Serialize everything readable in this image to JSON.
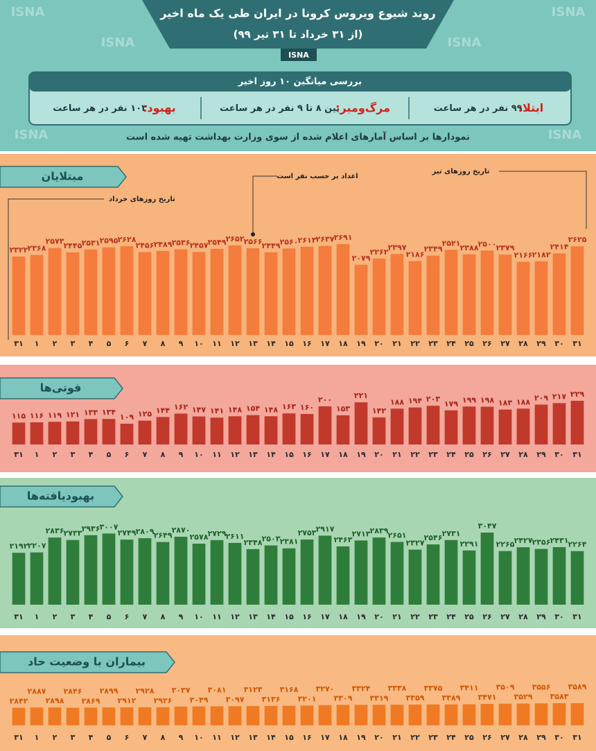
{
  "header": {
    "title": "روند شیوع ویروس کرونا در ایران طی یک ماه اخیر",
    "subtitle": "(از ۳۱ خرداد تا ۳۱ تیر ۹۹)",
    "brand": "ISNA",
    "watermark": "ISNA"
  },
  "summary": {
    "heading": "بررسی میانگین ۱۰ روز اخیر",
    "items": [
      {
        "label": "ابتلا:",
        "text": "۹۹ نفر در هر ساعت"
      },
      {
        "label": "مرگ‌ومیر:",
        "text": "بین ۸ تا ۹ نفر در هر ساعت"
      },
      {
        "label": "بهبود:",
        "text": "۱۰۳ نفر در هر ساعت"
      }
    ],
    "note": "نمودارها بر اساس آمارهای اعلام شده از سوی وزارت بهداشت تهیه شده است"
  },
  "chart_data": [
    {
      "type": "bar",
      "title": "مبتلایان",
      "color": "#f47c3c",
      "label_color": "#b8321e",
      "annotations": [
        "تاریخ روزهای خرداد",
        "تاریخ روزهای تیر",
        "اعداد بر حسب نفر است"
      ],
      "categories": [
        "۳۱",
        "۱",
        "۲",
        "۳",
        "۴",
        "۵",
        "۶",
        "۷",
        "۸",
        "۹",
        "۱۰",
        "۱۱",
        "۱۲",
        "۱۳",
        "۱۴",
        "۱۵",
        "۱۶",
        "۱۷",
        "۱۸",
        "۱۹",
        "۲۰",
        "۲۱",
        "۲۲",
        "۲۳",
        "۲۴",
        "۲۵",
        "۲۶",
        "۲۷",
        "۲۸",
        "۲۹",
        "۳۰",
        "۳۱"
      ],
      "values": [
        2322,
        2368,
        2573,
        2445,
        2531,
        2595,
        2628,
        2456,
        2489,
        2536,
        2457,
        2549,
        2652,
        2566,
        2449,
        2560,
        2613,
        2637,
        2691,
        2079,
        2262,
        2397,
        2186,
        2349,
        2521,
        2388,
        2500,
        2379,
        2166,
        2182,
        2414,
        2625
      ],
      "value_labels": [
        "۲۳۲۲",
        "۲۳۶۸",
        "۲۵۷۳",
        "۲۴۴۵",
        "۲۵۳۱",
        "۲۵۹۵",
        "۲۶۲۸",
        "۲۴۵۶",
        "۲۴۸۹",
        "۲۵۳۶",
        "۲۴۵۷",
        "۲۵۴۹",
        "۲۶۵۲",
        "۲۵۶۶",
        "۲۴۴۹",
        "۲۵۶۰",
        "۲۶۱۳",
        "۲۶۳۷",
        "۲۶۹۱",
        "۲۰۷۹",
        "۲۲۶۲",
        "۲۳۹۷",
        "۲۱۸۶",
        "۲۳۴۹",
        "۲۵۲۱",
        "۲۳۸۸",
        "۲۵۰۰",
        "۲۳۷۹",
        "۲۱۶۶",
        "۲۱۸۲",
        "۲۴۱۴",
        "۲۶۲۵"
      ]
    },
    {
      "type": "bar",
      "title": "فوتی‌ها",
      "color": "#c0392b",
      "label_color": "#a4241a",
      "categories": [
        "۳۱",
        "۱",
        "۲",
        "۳",
        "۴",
        "۵",
        "۶",
        "۷",
        "۸",
        "۹",
        "۱۰",
        "۱۱",
        "۱۲",
        "۱۳",
        "۱۴",
        "۱۵",
        "۱۶",
        "۱۷",
        "۱۸",
        "۱۹",
        "۲۰",
        "۲۱",
        "۲۲",
        "۲۳",
        "۲۴",
        "۲۵",
        "۲۶",
        "۲۷",
        "۲۸",
        "۲۹",
        "۳۰",
        "۳۱"
      ],
      "values": [
        115,
        116,
        119,
        121,
        133,
        134,
        109,
        125,
        144,
        162,
        147,
        141,
        148,
        154,
        148,
        163,
        160,
        200,
        153,
        221,
        142,
        188,
        194,
        203,
        179,
        199,
        198,
        183,
        188,
        209,
        217,
        229
      ],
      "value_labels": [
        "۱۱۵",
        "۱۱۶",
        "۱۱۹",
        "۱۲۱",
        "۱۳۳",
        "۱۳۴",
        "۱۰۹",
        "۱۲۵",
        "۱۴۴",
        "۱۶۲",
        "۱۴۷",
        "۱۴۱",
        "۱۴۸",
        "۱۵۴",
        "۱۴۸",
        "۱۶۳",
        "۱۶۰",
        "۲۰۰",
        "۱۵۳",
        "۲۲۱",
        "۱۴۲",
        "۱۸۸",
        "۱۹۴",
        "۲۰۳",
        "۱۷۹",
        "۱۹۹",
        "۱۹۸",
        "۱۸۳",
        "۱۸۸",
        "۲۰۹",
        "۲۱۷",
        "۲۲۹"
      ]
    },
    {
      "type": "bar",
      "title": "بهبودیافته‌ها",
      "color": "#2f7d3b",
      "label_color": "#1f5e2a",
      "categories": [
        "۳۱",
        "۱",
        "۲",
        "۳",
        "۴",
        "۵",
        "۶",
        "۷",
        "۸",
        "۹",
        "۱۰",
        "۱۱",
        "۱۲",
        "۱۳",
        "۱۴",
        "۱۵",
        "۱۶",
        "۱۷",
        "۱۸",
        "۱۹",
        "۲۰",
        "۲۱",
        "۲۲",
        "۲۳",
        "۲۴",
        "۲۵",
        "۲۶",
        "۲۷",
        "۲۸",
        "۲۹",
        "۳۰",
        "۳۱"
      ],
      "values": [
        2192,
        2207,
        2836,
        2733,
        2936,
        3007,
        2749,
        2809,
        2649,
        2870,
        2578,
        2729,
        2611,
        2348,
        2503,
        2381,
        2753,
        2917,
        2463,
        2713,
        2839,
        2651,
        2327,
        2546,
        2731,
        2291,
        3047,
        2265,
        2427,
        2356,
        2431,
        2264
      ],
      "value_labels": [
        "۲۱۹۲",
        "۲۲۰۷",
        "۲۸۳۶",
        "۲۷۳۳",
        "۲۹۳۶",
        "۳۰۰۷",
        "۲۷۴۹",
        "۲۸۰۹",
        "۲۶۴۹",
        "۲۸۷۰",
        "۲۵۷۸",
        "۲۷۲۹",
        "۲۶۱۱",
        "۲۳۴۸",
        "۲۵۰۳",
        "۲۳۸۱",
        "۲۷۵۳",
        "۲۹۱۷",
        "۲۴۶۳",
        "۲۷۱۳",
        "۲۸۳۹",
        "۲۶۵۱",
        "۲۳۲۷",
        "۲۵۴۶",
        "۲۷۳۱",
        "۲۲۹۱",
        "۳۰۴۷",
        "۲۲۶۵",
        "۲۴۲۷",
        "۲۳۵۶",
        "۲۴۳۱",
        "۲۲۶۴"
      ]
    },
    {
      "type": "bar",
      "title": "بیماران با وضعیت حاد",
      "color": "#f07a23",
      "label_color": "#d35400",
      "categories": [
        "۳۱",
        "۱",
        "۲",
        "۳",
        "۴",
        "۵",
        "۶",
        "۷",
        "۸",
        "۹",
        "۱۰",
        "۱۱",
        "۱۲",
        "۱۳",
        "۱۴",
        "۱۵",
        "۱۶",
        "۱۷",
        "۱۸",
        "۱۹",
        "۲۰",
        "۲۱",
        "۲۲",
        "۲۳",
        "۲۴",
        "۲۵",
        "۲۶",
        "۲۷",
        "۲۸",
        "۲۹",
        "۳۰",
        "۳۱"
      ],
      "values": [
        2842,
        2887,
        2898,
        2846,
        2869,
        2899,
        2912,
        2928,
        2926,
        3037,
        3049,
        3081,
        3097,
        3123,
        3136,
        3168,
        3201,
        3270,
        3309,
        3324,
        3319,
        3338,
        3359,
        3375,
        3389,
        3411,
        3471,
        3509,
        3529,
        3556,
        3583,
        3589
      ],
      "value_labels": [
        "۲۸۴۲",
        "۲۸۸۷",
        "۲۸۹۸",
        "۲۸۴۶",
        "۲۸۶۹",
        "۲۸۹۹",
        "۲۹۱۲",
        "۲۹۲۸",
        "۲۹۲۶",
        "۳۰۳۷",
        "۳۰۴۹",
        "۳۰۸۱",
        "۳۰۹۷",
        "۳۱۲۳",
        "۳۱۳۶",
        "۳۱۶۸",
        "۳۲۰۱",
        "۳۲۷۰",
        "۳۳۰۹",
        "۳۳۲۴",
        "۳۳۱۹",
        "۳۳۳۸",
        "۳۳۵۹",
        "۳۳۷۵",
        "۳۳۸۹",
        "۳۴۱۱",
        "۳۴۷۱",
        "۳۵۰۹",
        "۳۵۲۹",
        "۳۵۵۶",
        "۳۵۸۳",
        "۳۵۸۹"
      ]
    }
  ]
}
